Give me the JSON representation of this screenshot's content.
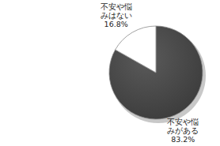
{
  "chart_data": {
    "type": "pie",
    "categories": [
      "不安や悩みがある",
      "不安や悩みはない"
    ],
    "values": [
      83.2,
      16.8
    ],
    "value_labels": [
      "83.2%",
      "16.8%"
    ],
    "colors": [
      "#3a3a3a",
      "#ffffff"
    ],
    "data_labels": true
  }
}
